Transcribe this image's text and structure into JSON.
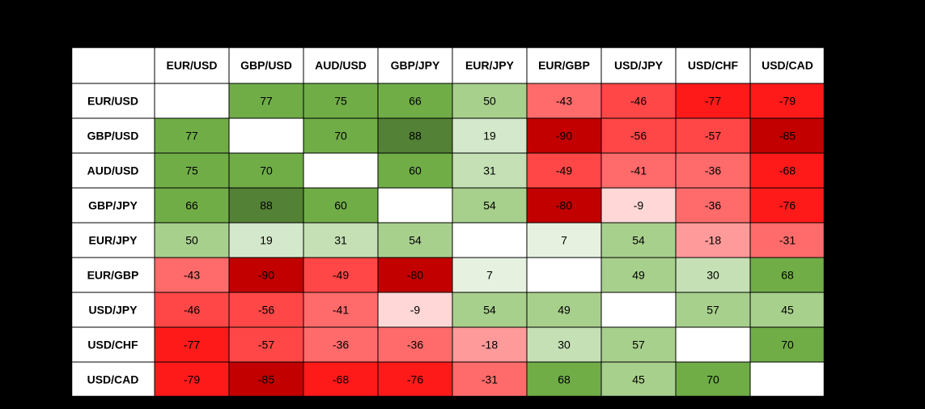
{
  "chart_data": {
    "type": "heatmap",
    "title": "",
    "xlabel": "",
    "ylabel": "",
    "rows": [
      "EUR/USD",
      "GBP/USD",
      "AUD/USD",
      "GBP/JPY",
      "EUR/JPY",
      "EUR/GBP",
      "USD/JPY",
      "USD/CHF",
      "USD/CAD"
    ],
    "columns": [
      "EUR/USD",
      "GBP/USD",
      "AUD/USD",
      "GBP/JPY",
      "EUR/JPY",
      "EUR/GBP",
      "USD/JPY",
      "USD/CHF",
      "USD/CAD"
    ],
    "values": [
      [
        null,
        77,
        75,
        66,
        50,
        -43,
        -46,
        -77,
        -79
      ],
      [
        77,
        null,
        70,
        88,
        19,
        -90,
        -56,
        -57,
        -85
      ],
      [
        75,
        70,
        null,
        60,
        31,
        -49,
        -41,
        -36,
        -68
      ],
      [
        66,
        88,
        60,
        null,
        54,
        -80,
        -9,
        -36,
        -76
      ],
      [
        50,
        19,
        31,
        54,
        null,
        7,
        54,
        -18,
        -31
      ],
      [
        -43,
        -90,
        -49,
        -80,
        7,
        null,
        49,
        30,
        68
      ],
      [
        -46,
        -56,
        -41,
        -9,
        54,
        49,
        null,
        57,
        45
      ],
      [
        -77,
        -57,
        -36,
        -36,
        -18,
        30,
        57,
        null,
        70
      ],
      [
        -79,
        -85,
        -68,
        -76,
        -31,
        68,
        45,
        70,
        null
      ]
    ],
    "value_range": [
      -90,
      90
    ],
    "color_scale": {
      "negative": [
        "#ffd7d7",
        "#ff9a9a",
        "#ff6b6b",
        "#ff4747",
        "#ff1a1a",
        "#c20000"
      ],
      "positive": [
        "#e6f2df",
        "#d4e8cb",
        "#c5e0b4",
        "#a8d08d",
        "#70ad47",
        "#538135"
      ],
      "empty": "#ffffff",
      "grid": "#000000",
      "header_background": "#ffffff",
      "text": "#000000"
    }
  }
}
